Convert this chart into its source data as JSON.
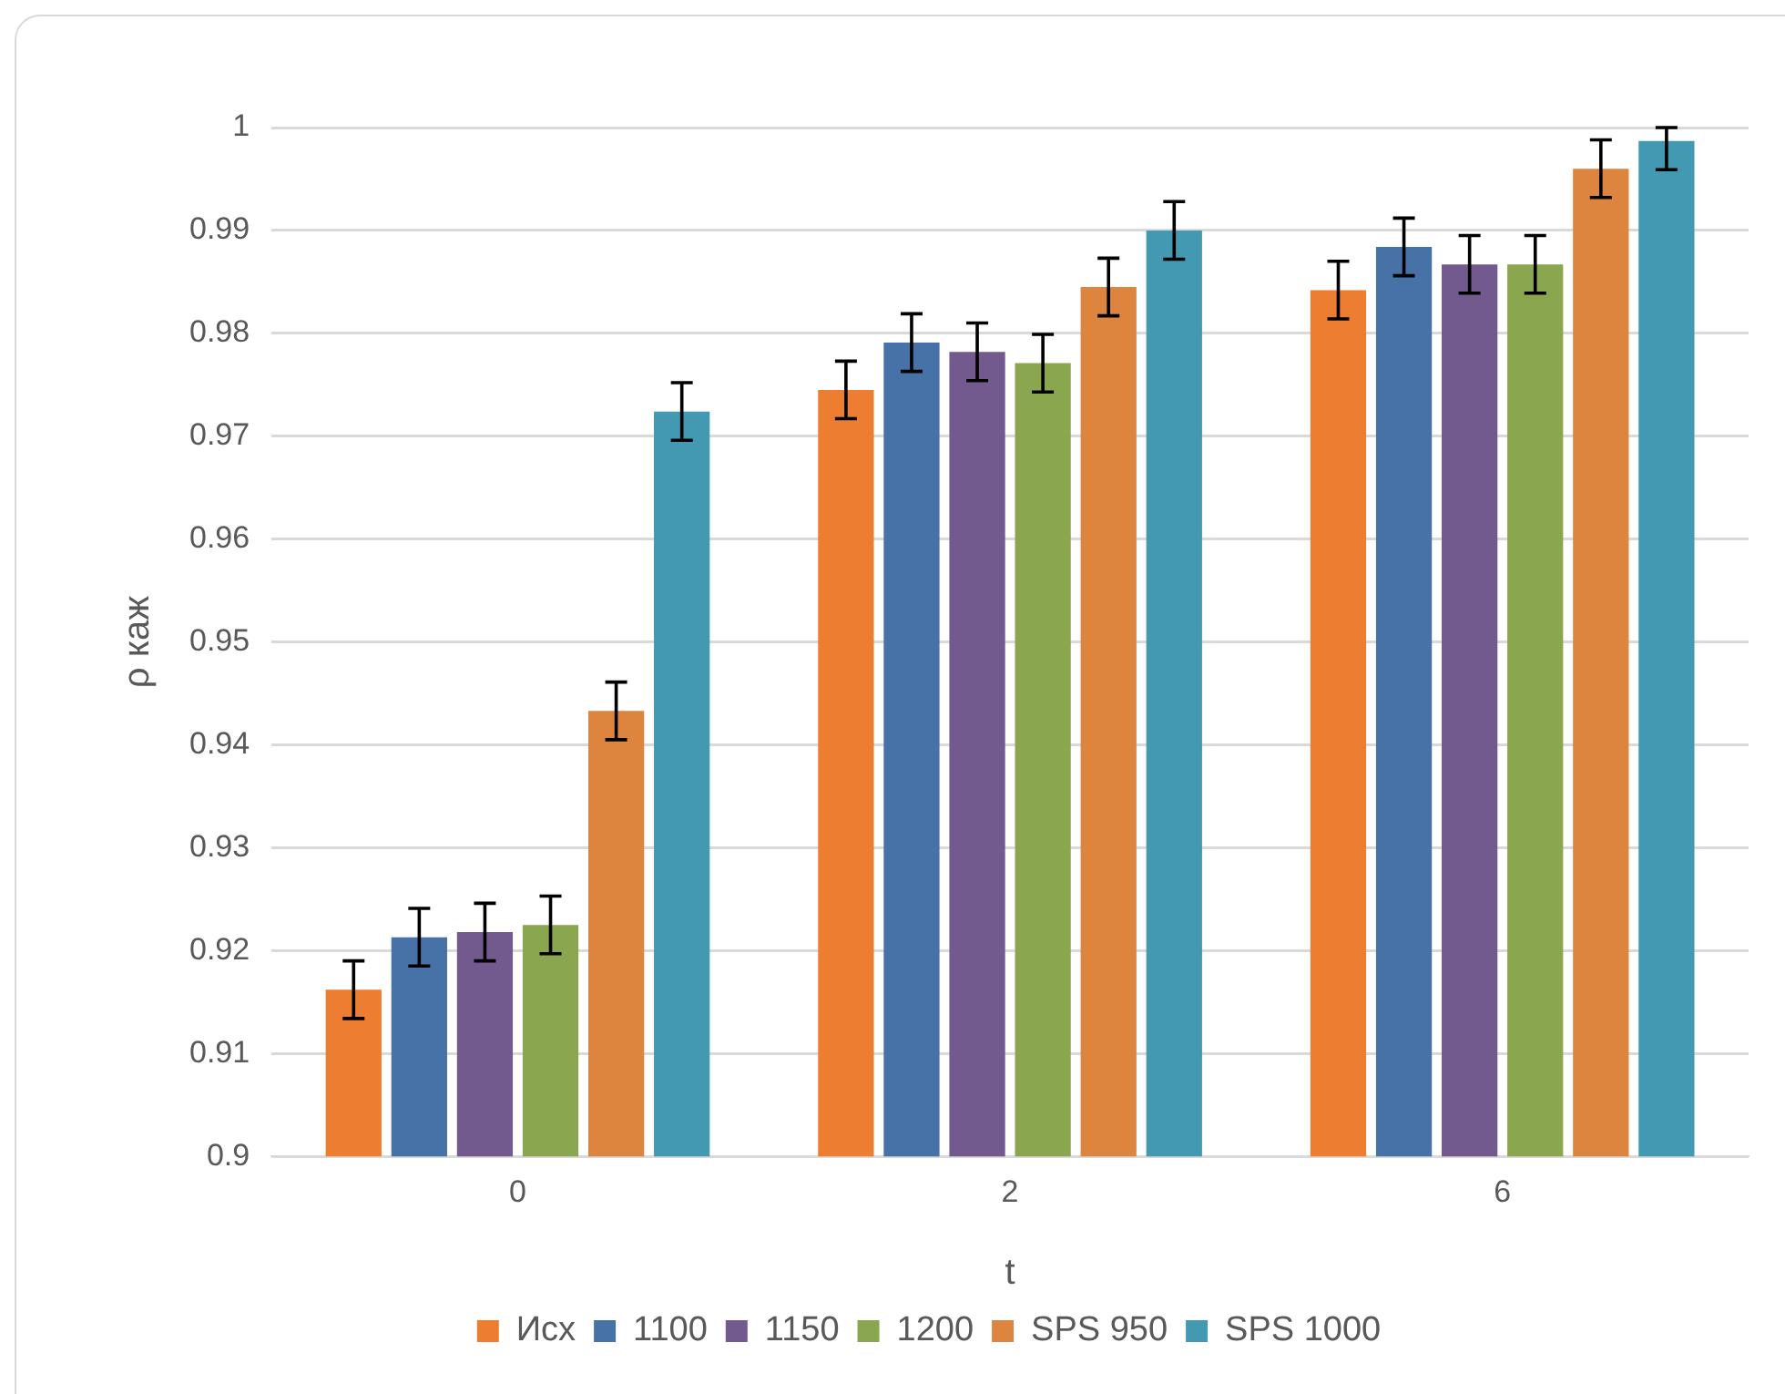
{
  "chart_data": {
    "type": "bar",
    "xlabel": "t",
    "ylabel": "ρ каж",
    "categories": [
      "0",
      "2",
      "6"
    ],
    "series": [
      {
        "name": "Исх",
        "color": "#ed7d31",
        "values": [
          0.9162,
          0.9745,
          0.9842
        ],
        "errors": [
          0.0028,
          0.0028,
          0.0028
        ]
      },
      {
        "name": "1100",
        "color": "#4672a8",
        "values": [
          0.9213,
          0.9791,
          0.9884
        ],
        "errors": [
          0.0028,
          0.0028,
          0.0028
        ]
      },
      {
        "name": "1150",
        "color": "#725a8f",
        "values": [
          0.9218,
          0.9782,
          0.9867
        ],
        "errors": [
          0.0028,
          0.0028,
          0.0028
        ]
      },
      {
        "name": "1200",
        "color": "#8aa64e",
        "values": [
          0.9225,
          0.9771,
          0.9867
        ],
        "errors": [
          0.0028,
          0.0028,
          0.0028
        ]
      },
      {
        "name": "SPS 950",
        "color": "#dd843f",
        "values": [
          0.9433,
          0.9845,
          0.996
        ],
        "errors": [
          0.0028,
          0.0028,
          0.0028
        ]
      },
      {
        "name": "SPS 1000",
        "color": "#4399b1",
        "values": [
          0.9724,
          0.99,
          0.9987
        ],
        "errors": [
          0.0028,
          0.0028,
          [
            0.9959,
            1
          ]
        ]
      }
    ],
    "ylim": [
      0.9,
      1
    ],
    "yticks": [
      0.9,
      0.91,
      0.92,
      0.93,
      0.94,
      0.95,
      0.96,
      0.97,
      0.98,
      0.99,
      1
    ],
    "grid": "y",
    "legend": "bottom"
  }
}
